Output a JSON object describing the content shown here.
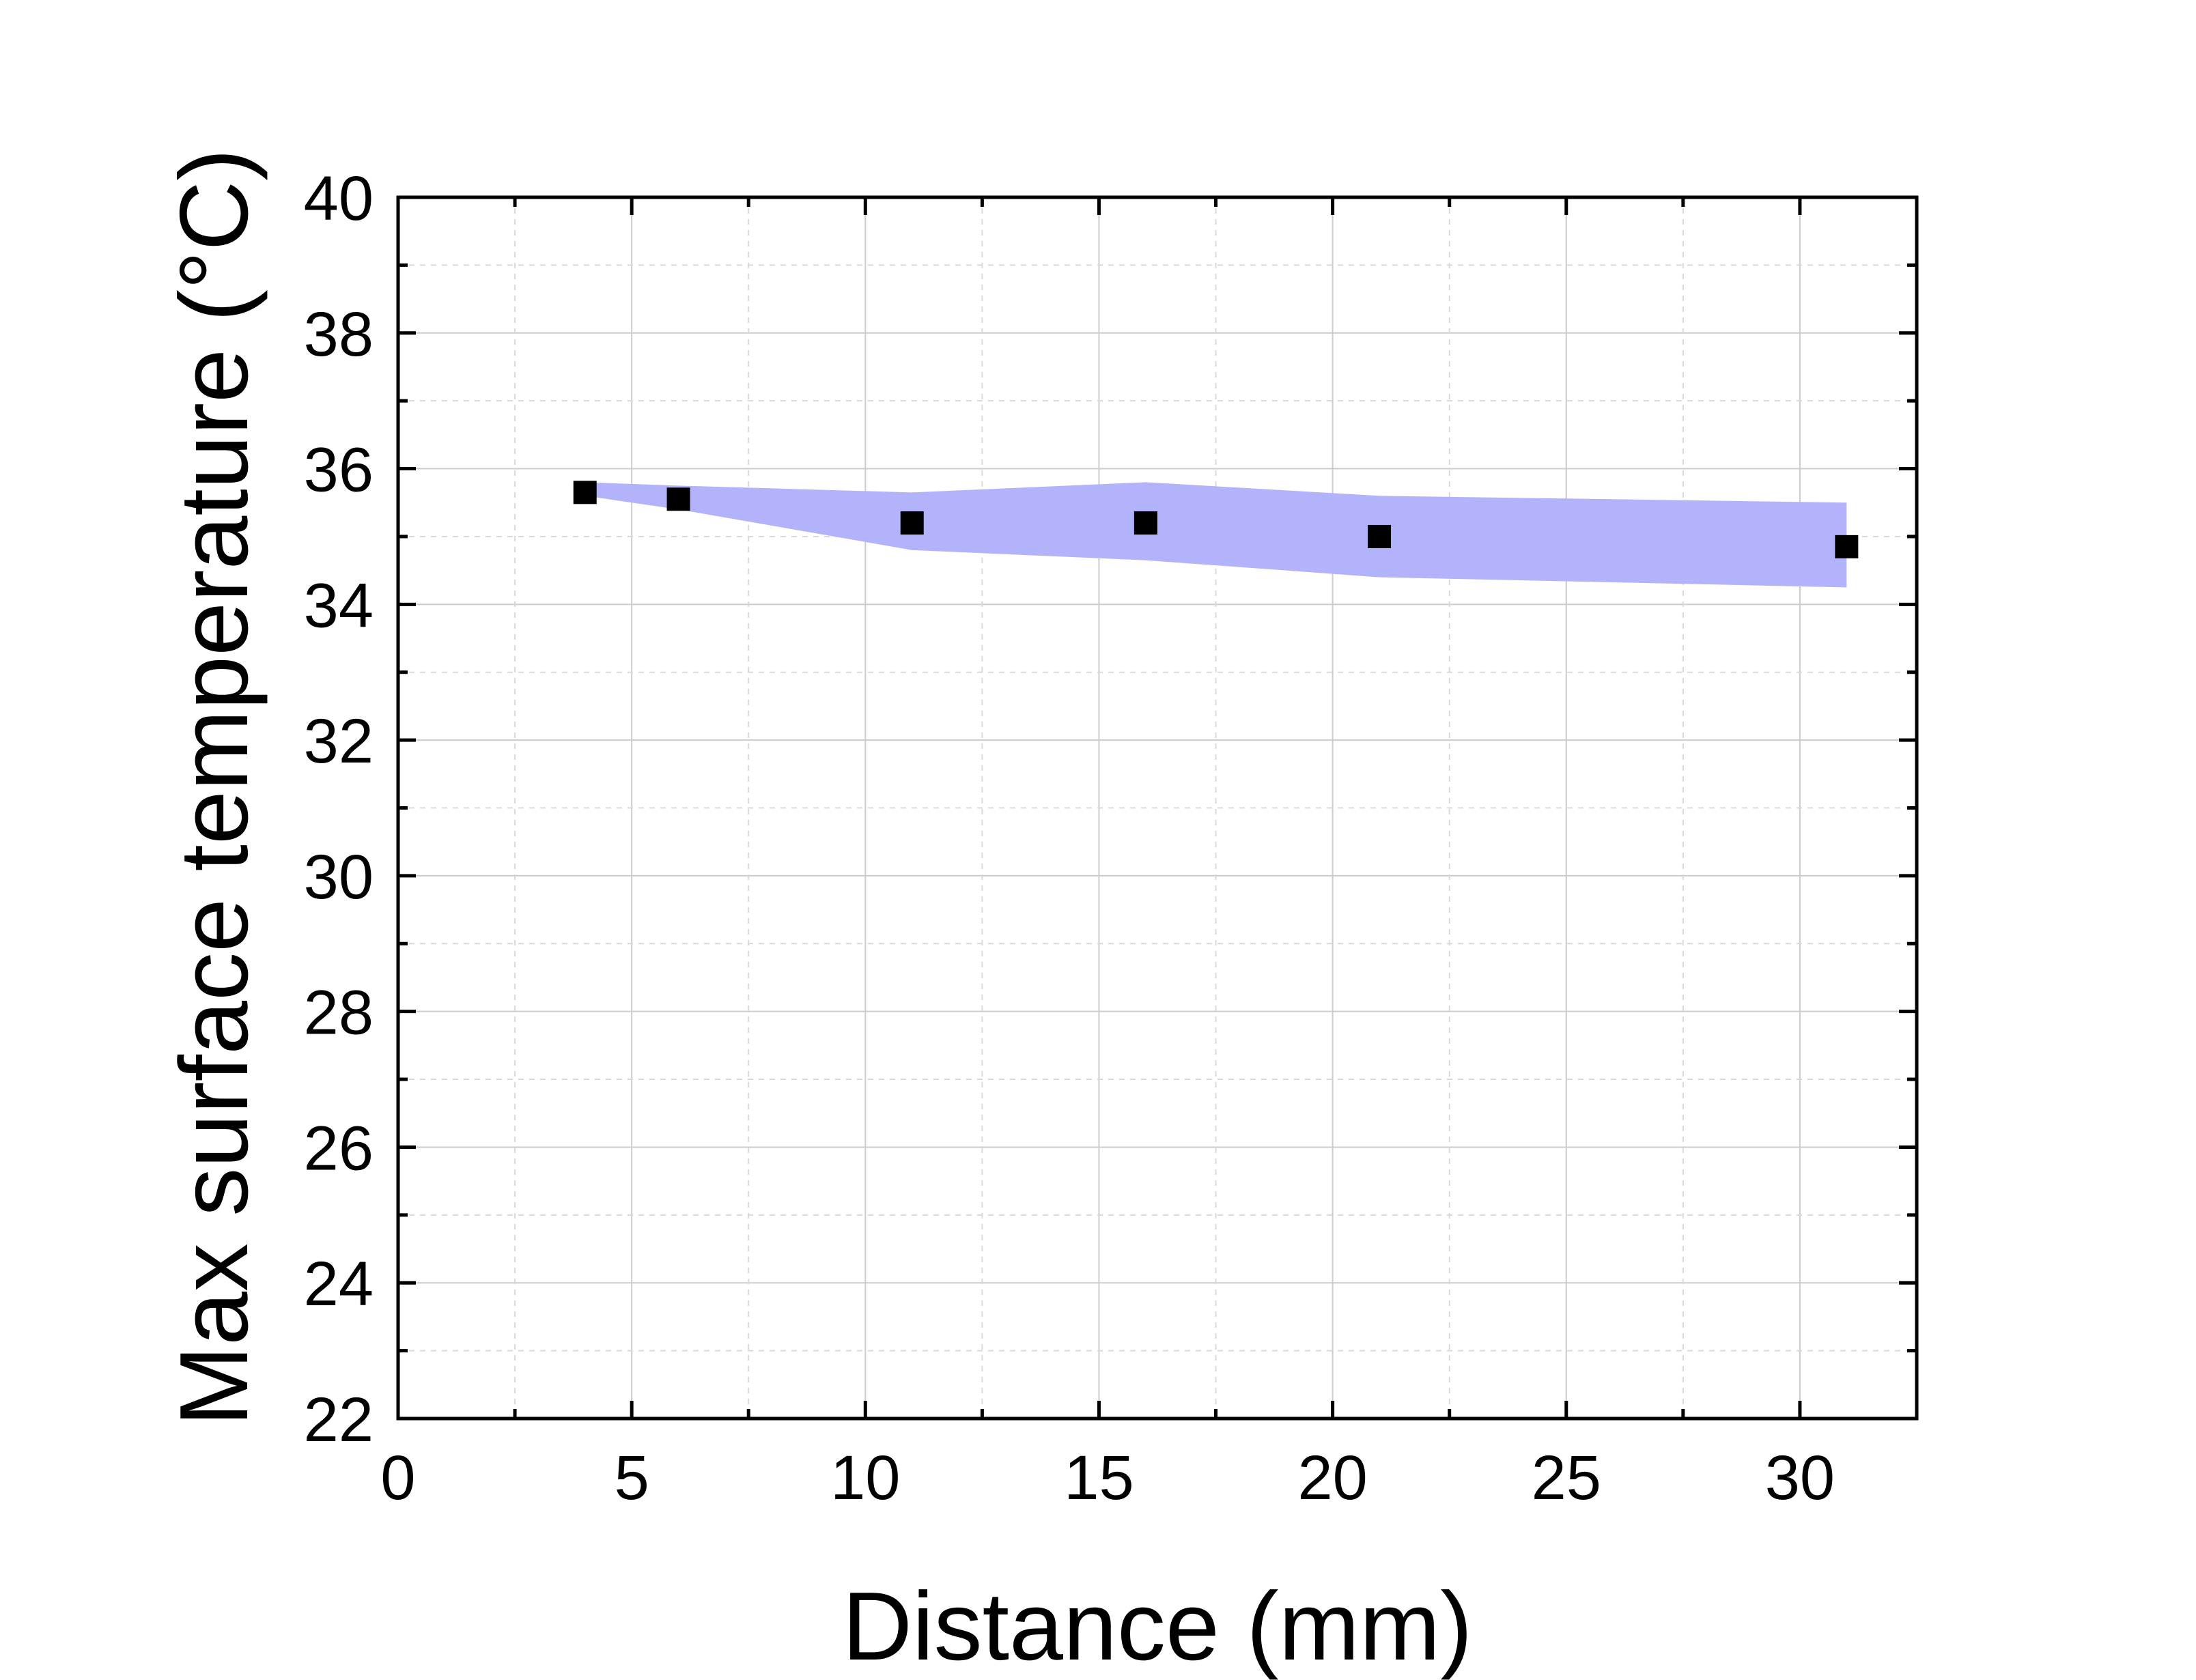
{
  "chart_data": {
    "type": "scatter",
    "title": "",
    "xlabel": "Distance (mm)",
    "ylabel": "Max surface temperature (°C)",
    "xlim": [
      0,
      32.5
    ],
    "ylim": [
      22,
      40
    ],
    "x_ticks": [
      0,
      5,
      10,
      15,
      20,
      25,
      30
    ],
    "y_ticks": [
      22,
      24,
      26,
      28,
      30,
      32,
      34,
      36,
      38,
      40
    ],
    "x_tick_labels": [
      "0",
      "5",
      "10",
      "15",
      "20",
      "25",
      "30"
    ],
    "y_tick_labels": [
      "22",
      "24",
      "26",
      "28",
      "30",
      "32",
      "34",
      "36",
      "38",
      "40"
    ],
    "grid": true,
    "legend": "none",
    "series": [
      {
        "marker": "square",
        "color": "#000000",
        "x": [
          4,
          6,
          11,
          16,
          21,
          31
        ],
        "y": [
          35.65,
          35.55,
          35.2,
          35.2,
          35.0,
          34.85
        ]
      }
    ],
    "band": {
      "color": "#b3b3fb",
      "x": [
        4,
        6,
        11,
        16,
        21,
        31
      ],
      "upper": [
        35.8,
        35.75,
        35.65,
        35.8,
        35.6,
        35.5
      ],
      "lower": [
        35.6,
        35.4,
        34.8,
        34.65,
        34.4,
        34.25
      ]
    }
  }
}
